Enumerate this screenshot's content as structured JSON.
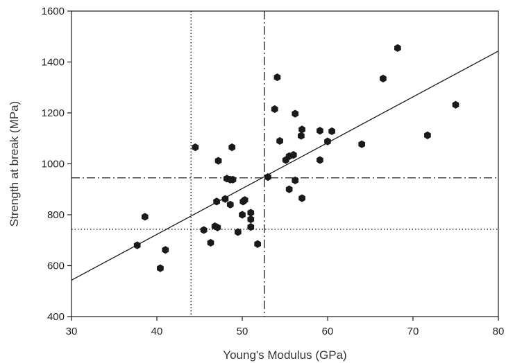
{
  "chart_data": {
    "type": "scatter",
    "xlabel": "Young's Modulus (GPa)",
    "ylabel": "Strength at break (MPa)",
    "xlim": [
      30,
      80
    ],
    "ylim": [
      400,
      1600
    ],
    "xticks": [
      "30",
      "40",
      "50",
      "60",
      "70",
      "80"
    ],
    "yticks": [
      "400",
      "600",
      "800",
      "1000",
      "1200",
      "1400",
      "1600"
    ],
    "grid": false,
    "points": [
      {
        "x": 37.7,
        "y": 680
      },
      {
        "x": 38.6,
        "y": 792
      },
      {
        "x": 40.4,
        "y": 590
      },
      {
        "x": 41.0,
        "y": 662
      },
      {
        "x": 44.5,
        "y": 1065
      },
      {
        "x": 45.5,
        "y": 740
      },
      {
        "x": 46.3,
        "y": 690
      },
      {
        "x": 46.8,
        "y": 755
      },
      {
        "x": 47.0,
        "y": 852
      },
      {
        "x": 47.1,
        "y": 750
      },
      {
        "x": 47.2,
        "y": 1012
      },
      {
        "x": 48.0,
        "y": 862
      },
      {
        "x": 48.2,
        "y": 942
      },
      {
        "x": 48.6,
        "y": 938
      },
      {
        "x": 48.6,
        "y": 840
      },
      {
        "x": 48.8,
        "y": 1065
      },
      {
        "x": 48.9,
        "y": 938
      },
      {
        "x": 49.5,
        "y": 732
      },
      {
        "x": 50.0,
        "y": 800
      },
      {
        "x": 50.1,
        "y": 852
      },
      {
        "x": 50.3,
        "y": 858
      },
      {
        "x": 51.0,
        "y": 808
      },
      {
        "x": 51.0,
        "y": 782
      },
      {
        "x": 51.0,
        "y": 752
      },
      {
        "x": 51.8,
        "y": 685
      },
      {
        "x": 53.0,
        "y": 948
      },
      {
        "x": 53.8,
        "y": 1215
      },
      {
        "x": 54.1,
        "y": 1340
      },
      {
        "x": 54.4,
        "y": 1090
      },
      {
        "x": 55.1,
        "y": 1015
      },
      {
        "x": 55.5,
        "y": 1030
      },
      {
        "x": 55.5,
        "y": 900
      },
      {
        "x": 56.0,
        "y": 1035
      },
      {
        "x": 56.2,
        "y": 1197
      },
      {
        "x": 56.2,
        "y": 935
      },
      {
        "x": 56.9,
        "y": 1110
      },
      {
        "x": 57.0,
        "y": 865
      },
      {
        "x": 57.0,
        "y": 1135
      },
      {
        "x": 59.1,
        "y": 1130
      },
      {
        "x": 59.1,
        "y": 1015
      },
      {
        "x": 60.0,
        "y": 1088
      },
      {
        "x": 60.5,
        "y": 1128
      },
      {
        "x": 64.0,
        "y": 1077
      },
      {
        "x": 66.5,
        "y": 1335
      },
      {
        "x": 68.2,
        "y": 1455
      },
      {
        "x": 71.7,
        "y": 1112
      },
      {
        "x": 75.0,
        "y": 1232
      }
    ],
    "regression_line": {
      "x": [
        30,
        80
      ],
      "y": [
        543,
        1443
      ]
    },
    "reference_lines": {
      "dash_dot": {
        "x": 52.6,
        "y": 945
      },
      "dotted": {
        "x": 44.0,
        "y": 743
      }
    },
    "marker": "filled-hexagon",
    "colors": {
      "marker": "#1a1a1a",
      "line": "#1a1a1a",
      "axis": "#1a1a1a"
    }
  }
}
